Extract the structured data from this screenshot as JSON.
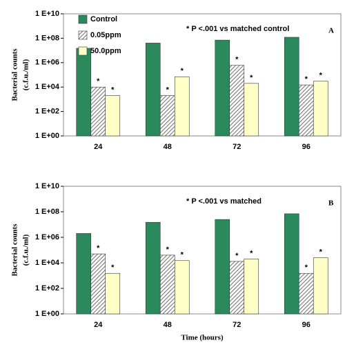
{
  "chart_data": [
    {
      "type": "bar",
      "log_scale": true,
      "panel_label": "A",
      "annotation": "* P <.001  vs matched control",
      "ylabel": [
        "Bacterial counts",
        "(c.f.u./ml)"
      ],
      "categories": [
        "24",
        "48",
        "72",
        "96"
      ],
      "ylim": [
        1,
        10000000000
      ],
      "yticks": [
        {
          "value": 1,
          "label": "1 E+00"
        },
        {
          "value": 100,
          "label": "1 E+02"
        },
        {
          "value": 10000,
          "label": "1 E+04"
        },
        {
          "value": 1000000,
          "label": "1 E+06"
        },
        {
          "value": 100000000,
          "label": "1 E+08"
        },
        {
          "value": 10000000000,
          "label": "1 E+10"
        }
      ],
      "legend": "top-left",
      "series": [
        {
          "name": "Control",
          "color": "#2a8a5c",
          "values": [
            15000000,
            40000000,
            70000000,
            120000000
          ]
        },
        {
          "name": "0.05ppm",
          "color": "#808080",
          "pattern": "hatch",
          "marker": "*",
          "values": [
            10000,
            2000,
            600000,
            15000
          ]
        },
        {
          "name": "50.0ppm",
          "color": "#ffffc8",
          "marker": "*",
          "values": [
            2000,
            70000,
            20000,
            30000
          ]
        }
      ]
    },
    {
      "type": "bar",
      "log_scale": true,
      "panel_label": "B",
      "annotation": "* P <.001  vs matched",
      "ylabel": [
        "Bacterial counts",
        "(c.f.u./ml)"
      ],
      "xlabel": "Time (hours)",
      "categories": [
        "24",
        "48",
        "72",
        "96"
      ],
      "ylim": [
        1,
        10000000000
      ],
      "yticks": [
        {
          "value": 1,
          "label": "1 E+00"
        },
        {
          "value": 100,
          "label": "1 E+02"
        },
        {
          "value": 10000,
          "label": "1 E+04"
        },
        {
          "value": 1000000,
          "label": "1 E+06"
        },
        {
          "value": 100000000,
          "label": "1 E+08"
        },
        {
          "value": 10000000000,
          "label": "1 E+10"
        }
      ],
      "series": [
        {
          "color": "#2a8a5c",
          "values": [
            2000000,
            15000000,
            25000000,
            70000000
          ]
        },
        {
          "color": "#808080",
          "pattern": "hatch",
          "marker": "*",
          "values": [
            50000,
            40000,
            13000,
            1500
          ]
        },
        {
          "color": "#ffffc8",
          "marker": "*",
          "values": [
            1500,
            15000,
            20000,
            25000
          ]
        }
      ]
    }
  ]
}
